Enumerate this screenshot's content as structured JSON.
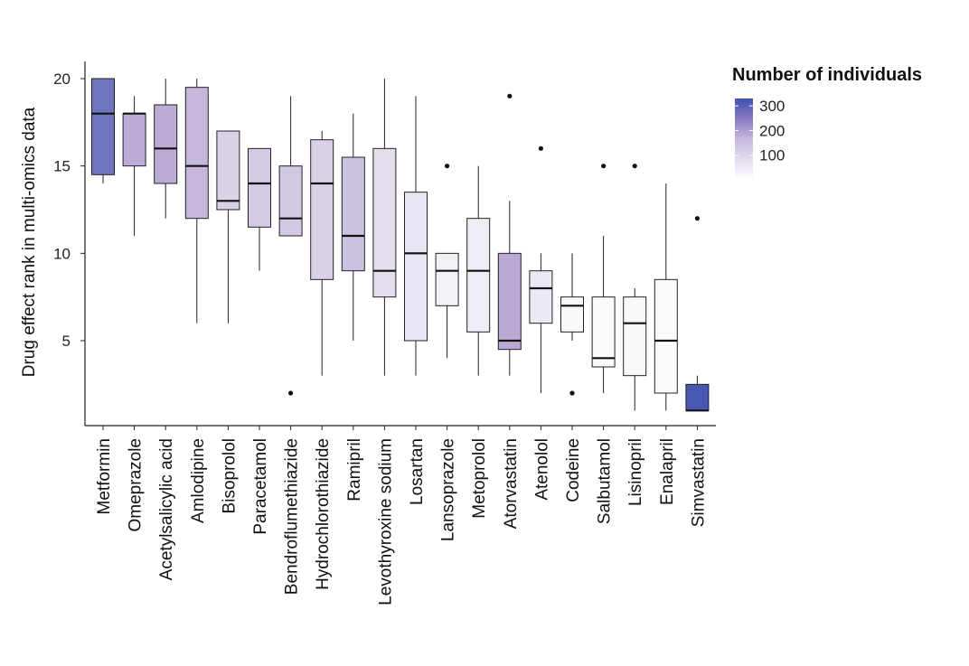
{
  "chart_data": {
    "type": "boxplot",
    "title": "",
    "xlabel": "",
    "ylabel": "Drug effect rank in multi-omics data",
    "ylim": [
      0,
      21
    ],
    "yticks": [
      5,
      10,
      15,
      20
    ],
    "legend": {
      "title": "Number of individuals",
      "placement": "top-right",
      "range": [
        0,
        330
      ],
      "ticks": [
        100,
        200,
        300
      ],
      "color_low": "#ffffff",
      "color_mid": "#b8a8d4",
      "color_high": "#3f51b0"
    },
    "categories": [
      "Metformin",
      "Omeprazole",
      "Acetylsalicylic acid",
      "Amlodipine",
      "Bisoprolol",
      "Paracetamol",
      "Bendroflumethiazide",
      "Hydrochlorothiazide",
      "Ramipril",
      "Levothyroxine sodium",
      "Losartan",
      "Lansoprazole",
      "Metoprolol",
      "Atorvastatin",
      "Atenolol",
      "Codeine",
      "Salbutamol",
      "Lisinopril",
      "Enalapril",
      "Simvastatin"
    ],
    "boxes": [
      {
        "name": "Metformin",
        "low": 14,
        "q1": 14.5,
        "median": 18,
        "q3": 20,
        "high": 20,
        "outliers": [],
        "n": 270
      },
      {
        "name": "Omeprazole",
        "low": 11,
        "q1": 15,
        "median": 18,
        "q3": 18,
        "high": 19,
        "outliers": [],
        "n": 175
      },
      {
        "name": "Acetylsalicylic acid",
        "low": 12,
        "q1": 14,
        "median": 16,
        "q3": 18.5,
        "high": 20,
        "outliers": [],
        "n": 175
      },
      {
        "name": "Amlodipine",
        "low": 6,
        "q1": 12,
        "median": 15,
        "q3": 19.5,
        "high": 20,
        "outliers": [],
        "n": 150
      },
      {
        "name": "Bisoprolol",
        "low": 6,
        "q1": 12.5,
        "median": 13,
        "q3": 17,
        "high": 17,
        "outliers": [],
        "n": 95
      },
      {
        "name": "Paracetamol",
        "low": 9,
        "q1": 11.5,
        "median": 14,
        "q3": 16,
        "high": 16,
        "outliers": [],
        "n": 110
      },
      {
        "name": "Bendroflumethiazide",
        "low": 11,
        "q1": 11,
        "median": 12,
        "q3": 15,
        "high": 19,
        "outliers": [
          2
        ],
        "n": 115
      },
      {
        "name": "Hydrochlorothiazide",
        "low": 3,
        "q1": 8.5,
        "median": 14,
        "q3": 16.5,
        "high": 17,
        "outliers": [],
        "n": 95
      },
      {
        "name": "Ramipril",
        "low": 5,
        "q1": 9,
        "median": 11,
        "q3": 15.5,
        "high": 18,
        "outliers": [],
        "n": 130
      },
      {
        "name": "Levothyroxine sodium",
        "low": 3,
        "q1": 7.5,
        "median": 9,
        "q3": 16,
        "high": 20,
        "outliers": [],
        "n": 70
      },
      {
        "name": "Losartan",
        "low": 3,
        "q1": 5,
        "median": 10,
        "q3": 13.5,
        "high": 19,
        "outliers": [],
        "n": 55
      },
      {
        "name": "Lansoprazole",
        "low": 4,
        "q1": 7,
        "median": 9,
        "q3": 10,
        "high": 10,
        "outliers": [
          15
        ],
        "n": 30
      },
      {
        "name": "Metoprolol",
        "low": 3,
        "q1": 5.5,
        "median": 9,
        "q3": 12,
        "high": 15,
        "outliers": [],
        "n": 40
      },
      {
        "name": "Atorvastatin",
        "low": 3,
        "q1": 4.5,
        "median": 5,
        "q3": 10,
        "high": 13,
        "outliers": [
          19
        ],
        "n": 180
      },
      {
        "name": "Atenolol",
        "low": 2,
        "q1": 6,
        "median": 8,
        "q3": 9,
        "high": 10,
        "outliers": [
          16
        ],
        "n": 45
      },
      {
        "name": "Codeine",
        "low": 5,
        "q1": 5.5,
        "median": 7,
        "q3": 7.5,
        "high": 10,
        "outliers": [
          2
        ],
        "n": 15
      },
      {
        "name": "Salbutamol",
        "low": 2,
        "q1": 3.5,
        "median": 4,
        "q3": 7.5,
        "high": 11,
        "outliers": [
          15
        ],
        "n": 10
      },
      {
        "name": "Lisinopril",
        "low": 1,
        "q1": 3,
        "median": 6,
        "q3": 7.5,
        "high": 8,
        "outliers": [
          15
        ],
        "n": 15
      },
      {
        "name": "Enalapril",
        "low": 1,
        "q1": 2,
        "median": 5,
        "q3": 8.5,
        "high": 14,
        "outliers": [],
        "n": 10
      },
      {
        "name": "Simvastatin",
        "low": 1,
        "q1": 1,
        "median": 1,
        "q3": 2.5,
        "high": 3,
        "outliers": [
          12
        ],
        "n": 320
      }
    ]
  }
}
